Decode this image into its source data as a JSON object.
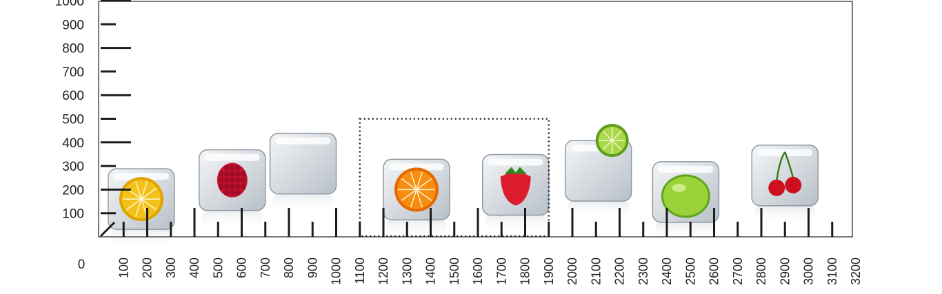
{
  "scale": {
    "y_ticks": [
      100,
      200,
      300,
      400,
      500,
      600,
      700,
      800,
      900,
      1000
    ],
    "y_labels": [
      "100",
      "200",
      "300",
      "400",
      "500",
      "600",
      "700",
      "800",
      "900",
      "1000"
    ],
    "origin_label": "0",
    "x_ticks": [
      100,
      200,
      300,
      400,
      500,
      600,
      700,
      800,
      900,
      1000,
      1100,
      1200,
      1300,
      1400,
      1500,
      1600,
      1700,
      1800,
      1900,
      2000,
      2100,
      2200,
      2300,
      2400,
      2500,
      2600,
      2700,
      2800,
      2900,
      3000,
      3100,
      3200
    ],
    "x_labels": [
      "100",
      "200",
      "300",
      "400",
      "500",
      "600",
      "700",
      "800",
      "900",
      "1000",
      "1100",
      "1200",
      "1300",
      "1400",
      "1500",
      "1600",
      "1700",
      "1800",
      "1900",
      "2000",
      "2100",
      "2200",
      "2300",
      "2400",
      "2500",
      "2600",
      "2700",
      "2800",
      "2900",
      "3000",
      "3100",
      "3200"
    ],
    "x_range": [
      0,
      3200
    ],
    "y_range": [
      0,
      1000
    ]
  },
  "selection": {
    "x_from": 1100,
    "x_to": 1900,
    "y_from": 0,
    "y_to": 500
  },
  "items": [
    {
      "name": "lemon-ice-cube",
      "x_center": 175,
      "y_center": 160,
      "fruit": "lemon",
      "fruit_color": "#f2c21b",
      "rind_color": "#e0a300"
    },
    {
      "name": "raspberry-ice-cube",
      "x_center": 560,
      "y_center": 240,
      "fruit": "raspberry",
      "fruit_color": "#c4112e",
      "rind_color": "#8e0a1f"
    },
    {
      "name": "empty-ice-cube",
      "x_center": 860,
      "y_center": 310,
      "fruit": "none",
      "fruit_color": "",
      "rind_color": ""
    },
    {
      "name": "orange-ice-cube",
      "x_center": 1340,
      "y_center": 200,
      "fruit": "orange",
      "fruit_color": "#f78e12",
      "rind_color": "#e46a00"
    },
    {
      "name": "strawberry-ice-cube",
      "x_center": 1760,
      "y_center": 220,
      "fruit": "strawberry",
      "fruit_color": "#dc1c2c",
      "rind_color": "#2f8a1d"
    },
    {
      "name": "lime-slice-ice-cube",
      "x_center": 2110,
      "y_center": 280,
      "fruit": "lime-slice",
      "fruit_color": "#a9d84a",
      "rind_color": "#5f9e1c"
    },
    {
      "name": "lime-ice-cube",
      "x_center": 2480,
      "y_center": 190,
      "fruit": "lime",
      "fruit_color": "#9bd23a",
      "rind_color": "#5ea51b"
    },
    {
      "name": "cherries-ice-cube",
      "x_center": 2900,
      "y_center": 260,
      "fruit": "cherries",
      "fruit_color": "#cc1020",
      "rind_color": "#3d7a1c"
    }
  ]
}
